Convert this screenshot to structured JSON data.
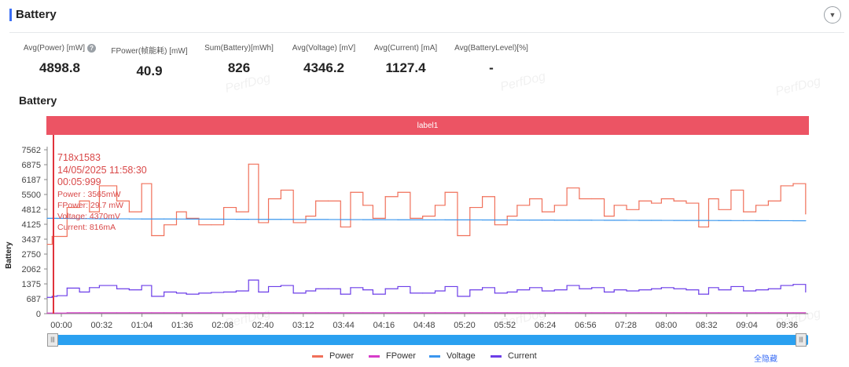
{
  "header": {
    "title": "Battery",
    "collapse_icon": "▼"
  },
  "stats": [
    {
      "label": "Avg(Power) [mW]",
      "value": "4898.8",
      "help": "?"
    },
    {
      "label": "FPower(帧能耗) [mW]",
      "value": "40.9"
    },
    {
      "label": "Sum(Battery)[mWh]",
      "value": "826"
    },
    {
      "label": "Avg(Voltage) [mV]",
      "value": "4346.2"
    },
    {
      "label": "Avg(Current) [mA]",
      "value": "1127.4"
    },
    {
      "label": "Avg(BatteryLevel)[%]",
      "value": "-"
    }
  ],
  "chart_title": "Battery",
  "label_band": "label1",
  "watermark": "PerfDog",
  "tooltip": {
    "resolution": "718x1583",
    "date": "14/05/2025 11:58:30",
    "elapsed": "00:05:999",
    "power": "Power : 3565mW",
    "fpower": "FPower: 29.7 mW",
    "voltage": "Voltage: 4370mV",
    "current": "Current: 816mA"
  },
  "scrollbar": {
    "handle_icon": "|||"
  },
  "hide_all": "全隐藏",
  "chart_data": {
    "type": "line",
    "ylabel": "Battery",
    "ylim": [
      0,
      7562
    ],
    "y_ticks": [
      "7562",
      "6875",
      "6187",
      "5500",
      "4812",
      "4125",
      "3437",
      "2750",
      "2062",
      "1375",
      "687",
      "0"
    ],
    "x_ticks": [
      "00:00",
      "00:32",
      "01:04",
      "01:36",
      "02:08",
      "02:40",
      "03:12",
      "03:44",
      "04:16",
      "04:48",
      "05:20",
      "05:52",
      "06:24",
      "06:56",
      "07:28",
      "08:00",
      "08:32",
      "09:04",
      "09:36"
    ],
    "xlim": [
      0,
      612
    ],
    "x": [
      0,
      4,
      8,
      16,
      26,
      34,
      42,
      56,
      66,
      76,
      84,
      94,
      104,
      112,
      122,
      132,
      142,
      152,
      162,
      170,
      178,
      188,
      198,
      208,
      216,
      226,
      236,
      244,
      254,
      262,
      272,
      282,
      292,
      302,
      312,
      320,
      330,
      340,
      350,
      360,
      370,
      378,
      388,
      398,
      408,
      418,
      428,
      438,
      448,
      456,
      466,
      476,
      486,
      494,
      504,
      514,
      524,
      532,
      540,
      550,
      560,
      570,
      580,
      590,
      600,
      610
    ],
    "series": [
      {
        "name": "Power",
        "color": "#f0705a",
        "values": [
          3200,
          3565,
          3565,
          4900,
          5200,
          4700,
          5900,
          5200,
          4700,
          6000,
          3600,
          4100,
          4700,
          4400,
          4100,
          4100,
          4900,
          4700,
          6900,
          4200,
          5300,
          5700,
          4200,
          4500,
          5200,
          5200,
          4000,
          5600,
          5000,
          4400,
          5400,
          5600,
          4400,
          4500,
          5000,
          5600,
          3600,
          4900,
          5400,
          4100,
          4500,
          5000,
          5300,
          4700,
          5000,
          5800,
          5300,
          5300,
          4500,
          5000,
          4800,
          5200,
          5100,
          5300,
          5200,
          5100,
          4000,
          5300,
          4800,
          5700,
          4700,
          5000,
          5200,
          5900,
          6000,
          4600
        ]
      },
      {
        "name": "FPower",
        "color": "#d63cc9",
        "values": [
          30,
          30,
          30,
          40,
          40,
          40,
          40,
          40,
          40,
          40,
          40,
          40,
          40,
          40,
          40,
          40,
          40,
          40,
          40,
          40,
          40,
          40,
          40,
          40,
          40,
          40,
          40,
          40,
          40,
          40,
          40,
          40,
          40,
          40,
          40,
          40,
          40,
          40,
          40,
          40,
          40,
          40,
          40,
          40,
          40,
          40,
          40,
          40,
          40,
          40,
          40,
          40,
          40,
          40,
          40,
          40,
          40,
          40,
          40,
          40,
          40,
          40,
          40,
          40,
          40,
          40
        ]
      },
      {
        "name": "Voltage",
        "color": "#3a96ee",
        "values": [
          4400,
          4400,
          4395,
          4390,
          4385,
          4380,
          4378,
          4375,
          4372,
          4370,
          4370,
          4368,
          4366,
          4365,
          4362,
          4360,
          4358,
          4356,
          4354,
          4352,
          4350,
          4350,
          4348,
          4346,
          4345,
          4344,
          4342,
          4340,
          4338,
          4336,
          4335,
          4334,
          4332,
          4330,
          4330,
          4329,
          4328,
          4326,
          4325,
          4324,
          4322,
          4320,
          4320,
          4318,
          4316,
          4315,
          4314,
          4312,
          4310,
          4310,
          4308,
          4306,
          4305,
          4304,
          4302,
          4300,
          4300,
          4298,
          4296,
          4295,
          4294,
          4292,
          4290,
          4290,
          4288,
          4286
        ]
      },
      {
        "name": "Current",
        "color": "#6c3ee8",
        "values": [
          750,
          800,
          830,
          1180,
          1000,
          1200,
          1300,
          1150,
          1100,
          1300,
          800,
          1000,
          950,
          900,
          950,
          980,
          1000,
          1050,
          1550,
          1000,
          1250,
          1300,
          950,
          1050,
          1150,
          1150,
          900,
          1200,
          1100,
          900,
          1150,
          1250,
          950,
          950,
          1050,
          1250,
          800,
          1100,
          1200,
          950,
          1000,
          1100,
          1200,
          1050,
          1100,
          1300,
          1150,
          1200,
          1000,
          1100,
          1050,
          1100,
          1150,
          1200,
          1150,
          1100,
          900,
          1200,
          1100,
          1250,
          1050,
          1100,
          1150,
          1300,
          1350,
          1000
        ]
      }
    ],
    "grid": false,
    "legend": "bottom"
  }
}
